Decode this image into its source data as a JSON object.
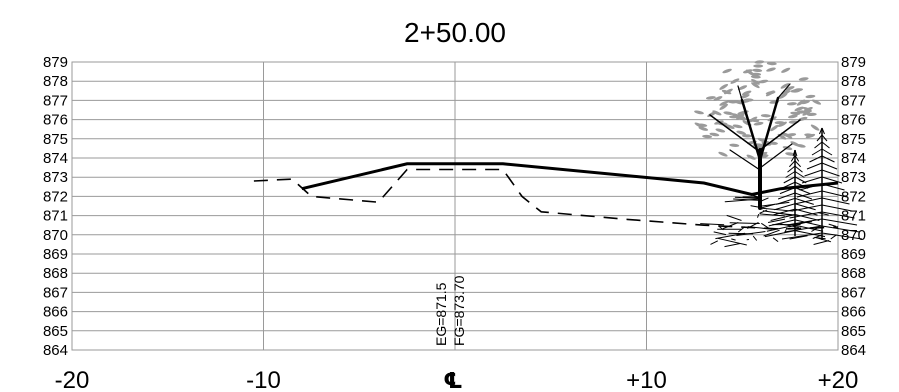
{
  "station": "2+50.00",
  "centerline_symbol": "℄",
  "annotation": {
    "eg": "EG=871.5",
    "fg": "FG=873.70"
  },
  "chart_data": {
    "type": "line",
    "title": "2+50.00",
    "xlim": [
      -20,
      20
    ],
    "ylim": [
      864,
      879
    ],
    "x_ticks": [
      -20,
      -10,
      10,
      20
    ],
    "x_tick_labels": [
      "-20",
      "-10",
      "+10",
      "+20"
    ],
    "y_ticks": [
      879,
      878,
      877,
      876,
      875,
      874,
      873,
      872,
      871,
      870,
      869,
      868,
      867,
      866,
      865,
      864
    ],
    "grid": true,
    "series": [
      {
        "style": "solid",
        "points": [
          [
            -8.0,
            872.4
          ],
          [
            -2.5,
            873.7
          ],
          [
            2.5,
            873.7
          ],
          [
            13.0,
            872.7
          ],
          [
            15.5,
            872.1
          ],
          [
            17.0,
            872.4
          ],
          [
            20.0,
            872.7
          ]
        ]
      },
      {
        "style": "dashed",
        "points": [
          [
            -10.5,
            872.8
          ],
          [
            -8.5,
            872.9
          ],
          [
            -7.5,
            872.0
          ],
          [
            -4.0,
            871.7
          ],
          [
            -4.0,
            871.7
          ],
          [
            -2.5,
            873.4
          ],
          [
            2.5,
            873.4
          ],
          [
            3.5,
            872.0
          ],
          [
            4.5,
            871.2
          ],
          [
            9.0,
            870.8
          ],
          [
            13.0,
            870.5
          ],
          [
            17.0,
            870.3
          ],
          [
            20.0,
            870.4
          ]
        ]
      }
    ],
    "centerline_x": 0
  }
}
